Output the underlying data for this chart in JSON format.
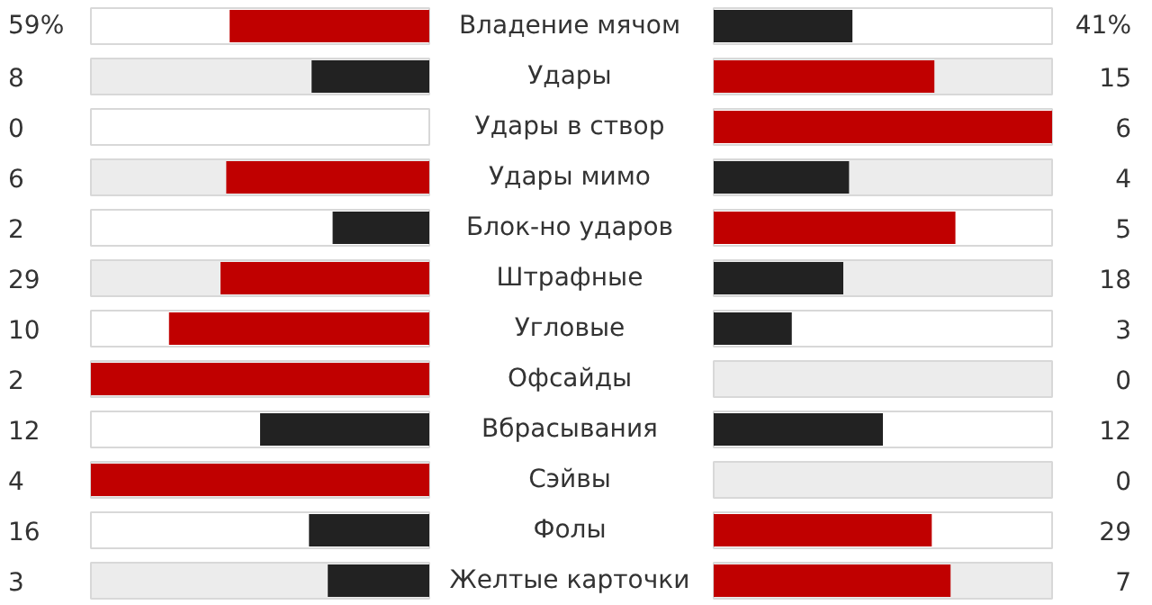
{
  "chart_data": {
    "type": "other",
    "categories": [
      "Владение мячом",
      "Удары",
      "Удары в створ",
      "Удары мимо",
      "Блок-но ударов",
      "Штрафные",
      "Угловые",
      "Офсайды",
      "Вбрасывания",
      "Сэйвы",
      "Фолы",
      "Желтые карточки"
    ],
    "series": [
      {
        "values": [
          59,
          8,
          0,
          6,
          2,
          29,
          10,
          2,
          12,
          4,
          16,
          3
        ],
        "colors": [
          "#c00000",
          "#222222",
          null,
          "#c00000",
          "#222222",
          "#c00000",
          "#c00000",
          "#c00000",
          "#222222",
          "#c00000",
          "#222222",
          "#222222"
        ],
        "value_labels": [
          "59%",
          "8",
          "0",
          "6",
          "2",
          "29",
          "10",
          "2",
          "12",
          "4",
          "16",
          "3"
        ]
      },
      {
        "values": [
          41,
          15,
          6,
          4,
          5,
          18,
          3,
          0,
          12,
          0,
          29,
          7
        ],
        "colors": [
          "#222222",
          "#c00000",
          "#c00000",
          "#222222",
          "#c00000",
          "#222222",
          "#222222",
          null,
          "#222222",
          null,
          "#c00000",
          "#c00000"
        ],
        "value_labels": [
          "41%",
          "15",
          "6",
          "4",
          "5",
          "18",
          "3",
          "0",
          "12",
          "0",
          "29",
          "7"
        ]
      }
    ]
  }
}
